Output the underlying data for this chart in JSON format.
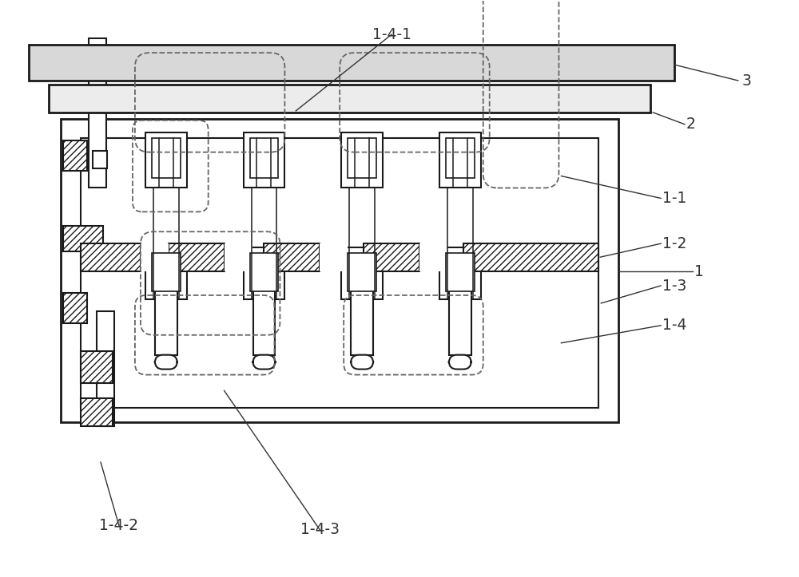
{
  "bg_color": "#ffffff",
  "line_color": "#1a1a1a",
  "hatch_color": "#1a1a1a",
  "dashed_color": "#666666",
  "label_color": "#333333",
  "fig_width": 10.0,
  "fig_height": 7.23,
  "dpi": 100
}
